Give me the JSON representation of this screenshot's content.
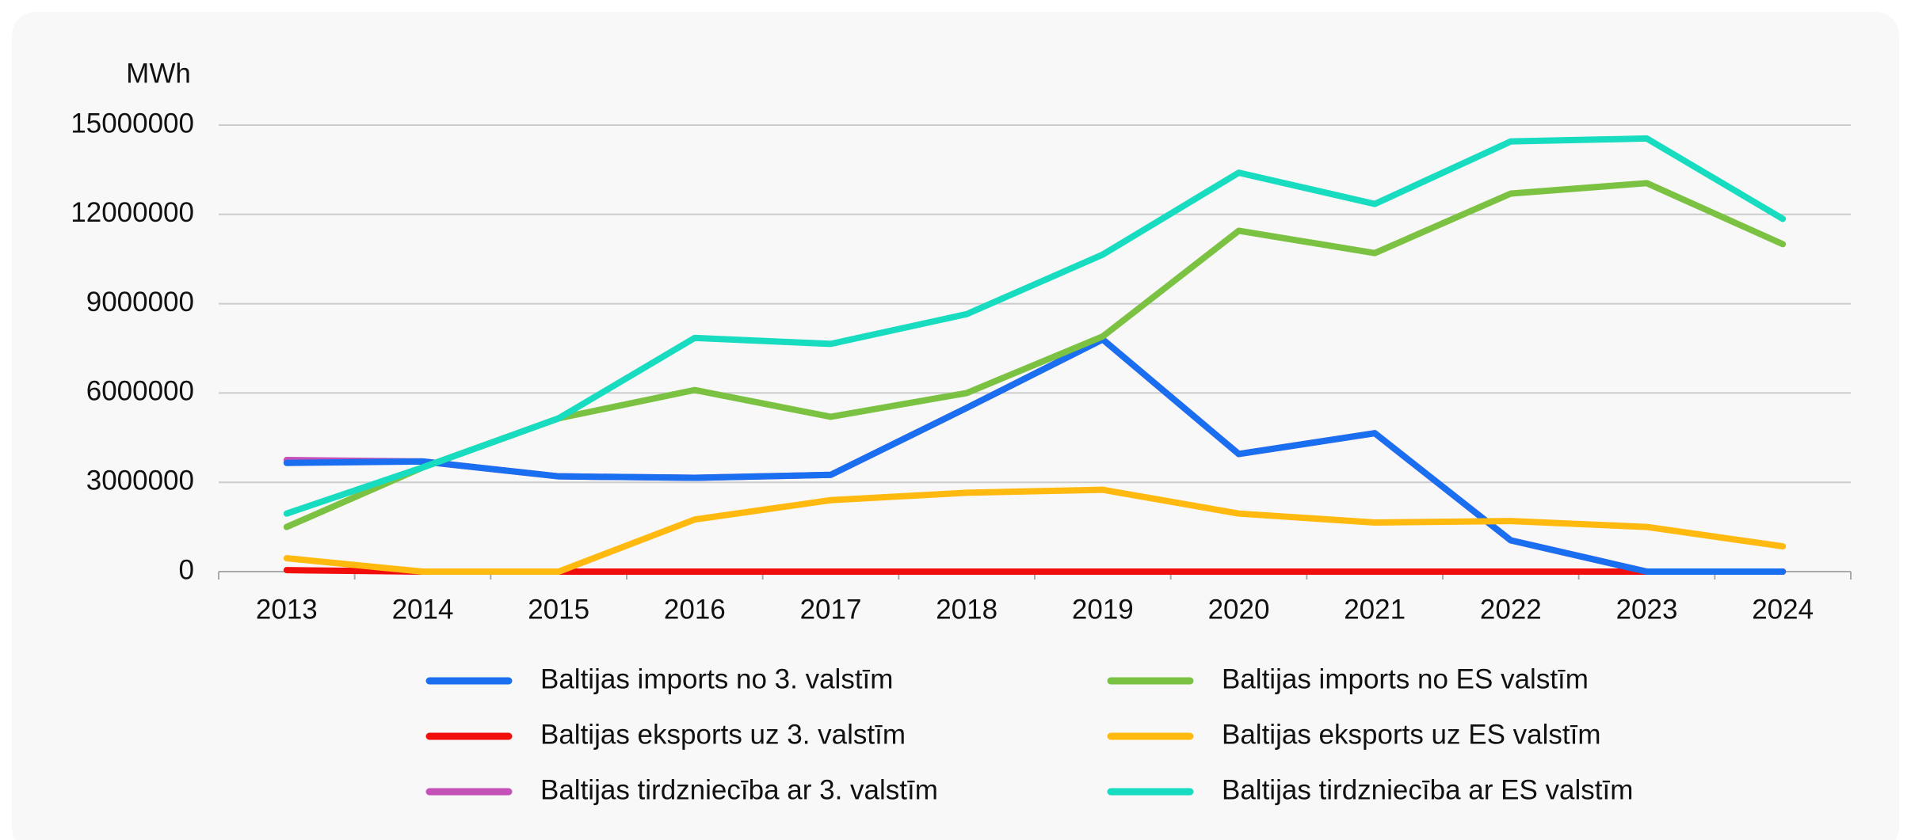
{
  "chart_data": {
    "type": "line",
    "y_label": "MWh",
    "categories": [
      "2013",
      "2014",
      "2015",
      "2016",
      "2017",
      "2018",
      "2019",
      "2020",
      "2021",
      "2022",
      "2023",
      "2024"
    ],
    "ylim": [
      0,
      15000000
    ],
    "yticks": [
      0,
      3000000,
      6000000,
      9000000,
      12000000,
      15000000
    ],
    "grid": true,
    "series": [
      {
        "name": "Baltijas imports no 3. valstīm",
        "color": "#1a6ff0",
        "values": [
          3650000,
          3700000,
          3200000,
          3150000,
          3250000,
          5500000,
          7800000,
          3950000,
          4650000,
          1050000,
          0,
          0
        ]
      },
      {
        "name": "Baltijas eksports uz 3. valstīm",
        "color": "#f20d0d",
        "values": [
          50000,
          0,
          0,
          0,
          0,
          0,
          0,
          0,
          0,
          0,
          0,
          0
        ]
      },
      {
        "name": "Baltijas tirdzniecība ar 3. valstīm",
        "color": "#c451b8",
        "values": [
          3750000,
          3700000,
          3200000,
          3150000,
          3250000,
          5500000,
          7800000,
          3950000,
          4650000,
          1050000,
          0,
          0
        ]
      },
      {
        "name": "Baltijas imports no ES valstīm",
        "color": "#7cc242",
        "values": [
          1500000,
          3500000,
          5150000,
          6100000,
          5200000,
          6000000,
          7900000,
          11450000,
          10700000,
          12700000,
          13050000,
          11000000
        ]
      },
      {
        "name": "Baltijas eksports uz ES valstīm",
        "color": "#ffb90f",
        "values": [
          450000,
          0,
          0,
          1750000,
          2400000,
          2650000,
          2750000,
          1950000,
          1650000,
          1700000,
          1500000,
          850000
        ]
      },
      {
        "name": "Baltijas tirdzniecība ar ES valstīm",
        "color": "#17dcc0",
        "values": [
          1950000,
          3500000,
          5150000,
          7850000,
          7650000,
          8650000,
          10650000,
          13400000,
          12350000,
          14450000,
          14550000,
          11850000
        ]
      }
    ]
  }
}
